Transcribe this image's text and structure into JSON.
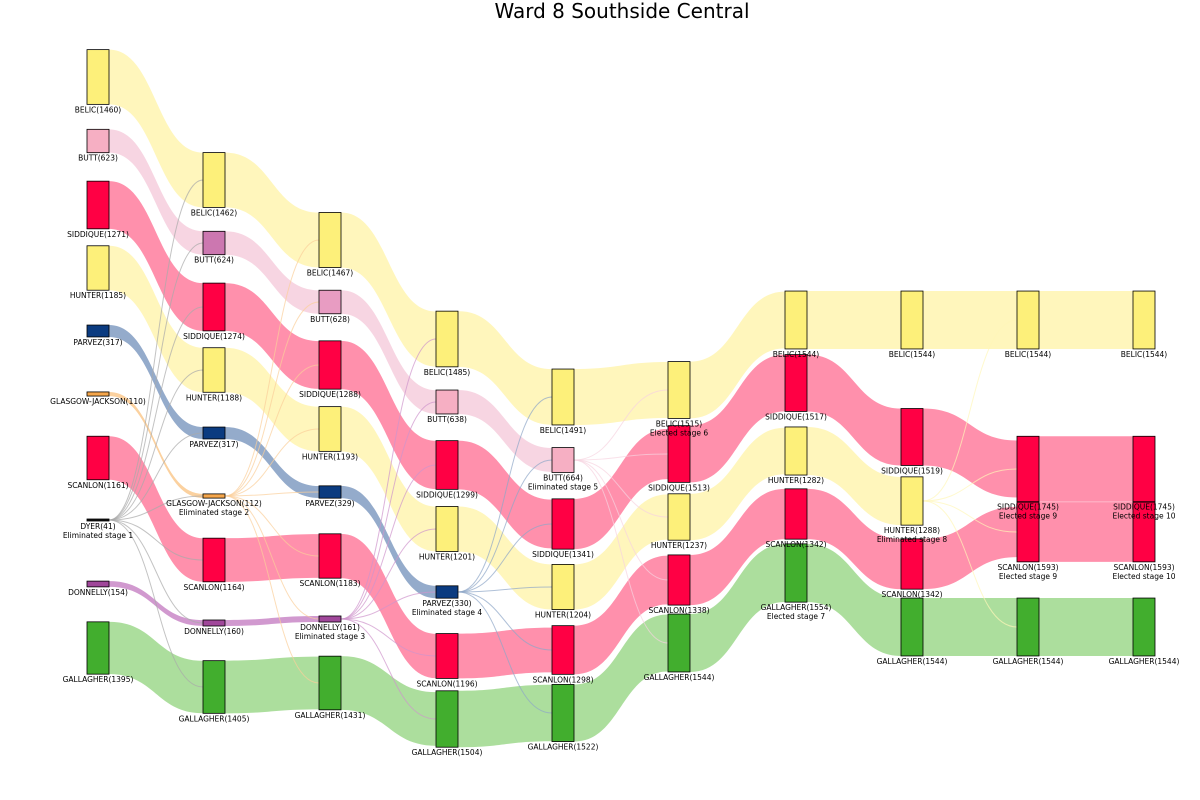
{
  "chart_data": {
    "type": "sankey",
    "title": "Ward 8 Southside Central",
    "colors": {
      "BELIC": "#fdf07a",
      "BUTT": "#f6afc3",
      "BUTT_S2": "#cc77b0",
      "BUTT_S3": "#e89cc2",
      "SIDDIQUE": "#ff0044",
      "HUNTER": "#fdf07a",
      "PARVEZ": "#0b3b80",
      "GLASGOW-JACKSON": "#f5a64b",
      "SCANLON": "#ff0044",
      "DYER": "#111111",
      "DONNELLY": "#a0479a",
      "GALLAGHER": "#42ae2e"
    },
    "flow_colors": {
      "BELIC": "#fff6b8",
      "BUTT": "#f7d3e0",
      "SIDDIQUE": "#ff8aa8",
      "HUNTER": "#fff6b8",
      "PARVEZ": "#8ea6c8",
      "GLASGOW-JACKSON": "#fbcf9a",
      "SCANLON": "#ff8aa8",
      "DONNELLY": "#cf94cc",
      "GALLAGHER": "#a8dc98"
    },
    "stages": [
      {
        "nodes": [
          {
            "c": "BELIC",
            "v": 1460
          },
          {
            "c": "BUTT",
            "v": 623
          },
          {
            "c": "SIDDIQUE",
            "v": 1271
          },
          {
            "c": "HUNTER",
            "v": 1185
          },
          {
            "c": "PARVEZ",
            "v": 317
          },
          {
            "c": "GLASGOW-JACKSON",
            "v": 110
          },
          {
            "c": "SCANLON",
            "v": 1161
          },
          {
            "c": "DYER",
            "v": 41,
            "note": "Eliminated stage 1"
          },
          {
            "c": "DONNELLY",
            "v": 154
          },
          {
            "c": "GALLAGHER",
            "v": 1395
          }
        ]
      },
      {
        "nodes": [
          {
            "c": "BELIC",
            "v": 1462
          },
          {
            "c": "BUTT",
            "v": 624
          },
          {
            "c": "SIDDIQUE",
            "v": 1274
          },
          {
            "c": "HUNTER",
            "v": 1188
          },
          {
            "c": "PARVEZ",
            "v": 317
          },
          {
            "c": "GLASGOW-JACKSON",
            "v": 112,
            "note": "Eliminated stage 2"
          },
          {
            "c": "SCANLON",
            "v": 1164
          },
          {
            "c": "DONNELLY",
            "v": 160
          },
          {
            "c": "GALLAGHER",
            "v": 1405
          }
        ]
      },
      {
        "nodes": [
          {
            "c": "BELIC",
            "v": 1467
          },
          {
            "c": "BUTT",
            "v": 628
          },
          {
            "c": "SIDDIQUE",
            "v": 1288
          },
          {
            "c": "HUNTER",
            "v": 1193
          },
          {
            "c": "PARVEZ",
            "v": 329
          },
          {
            "c": "SCANLON",
            "v": 1183
          },
          {
            "c": "DONNELLY",
            "v": 161,
            "note": "Eliminated stage 3"
          },
          {
            "c": "GALLAGHER",
            "v": 1431
          }
        ]
      },
      {
        "nodes": [
          {
            "c": "BELIC",
            "v": 1485
          },
          {
            "c": "BUTT",
            "v": 638
          },
          {
            "c": "SIDDIQUE",
            "v": 1299
          },
          {
            "c": "HUNTER",
            "v": 1201
          },
          {
            "c": "PARVEZ",
            "v": 330,
            "note": "Eliminated stage 4"
          },
          {
            "c": "SCANLON",
            "v": 1196
          },
          {
            "c": "GALLAGHER",
            "v": 1504
          }
        ]
      },
      {
        "nodes": [
          {
            "c": "BELIC",
            "v": 1491
          },
          {
            "c": "BUTT",
            "v": 664,
            "note": "Eliminated stage 5"
          },
          {
            "c": "SIDDIQUE",
            "v": 1341
          },
          {
            "c": "HUNTER",
            "v": 1204
          },
          {
            "c": "SCANLON",
            "v": 1298
          },
          {
            "c": "GALLAGHER",
            "v": 1522
          }
        ]
      },
      {
        "nodes": [
          {
            "c": "BELIC",
            "v": 1515,
            "note": "Elected stage 6"
          },
          {
            "c": "SIDDIQUE",
            "v": 1513
          },
          {
            "c": "HUNTER",
            "v": 1237
          },
          {
            "c": "SCANLON",
            "v": 1338
          },
          {
            "c": "GALLAGHER",
            "v": 1544
          }
        ]
      },
      {
        "nodes": [
          {
            "c": "BELIC",
            "v": 1544
          },
          {
            "c": "SIDDIQUE",
            "v": 1517
          },
          {
            "c": "HUNTER",
            "v": 1282
          },
          {
            "c": "SCANLON",
            "v": 1342
          },
          {
            "c": "GALLAGHER",
            "v": 1554,
            "note": "Elected stage 7"
          }
        ]
      },
      {
        "nodes": [
          {
            "c": "BELIC",
            "v": 1544
          },
          {
            "c": "SIDDIQUE",
            "v": 1519
          },
          {
            "c": "HUNTER",
            "v": 1288,
            "note": "Eliminated stage 8"
          },
          {
            "c": "SCANLON",
            "v": 1342
          },
          {
            "c": "GALLAGHER",
            "v": 1544
          }
        ]
      },
      {
        "nodes": [
          {
            "c": "BELIC",
            "v": 1544
          },
          {
            "c": "SIDDIQUE",
            "v": 1745,
            "note": "Elected stage 9"
          },
          {
            "c": "SCANLON",
            "v": 1593,
            "note": "Elected stage 9"
          },
          {
            "c": "GALLAGHER",
            "v": 1544
          }
        ]
      },
      {
        "nodes": [
          {
            "c": "BELIC",
            "v": 1544
          },
          {
            "c": "SIDDIQUE",
            "v": 1745,
            "note": "Elected stage 10"
          },
          {
            "c": "SCANLON",
            "v": 1593,
            "note": "Elected stage 10"
          },
          {
            "c": "GALLAGHER",
            "v": 1544
          }
        ]
      }
    ]
  }
}
